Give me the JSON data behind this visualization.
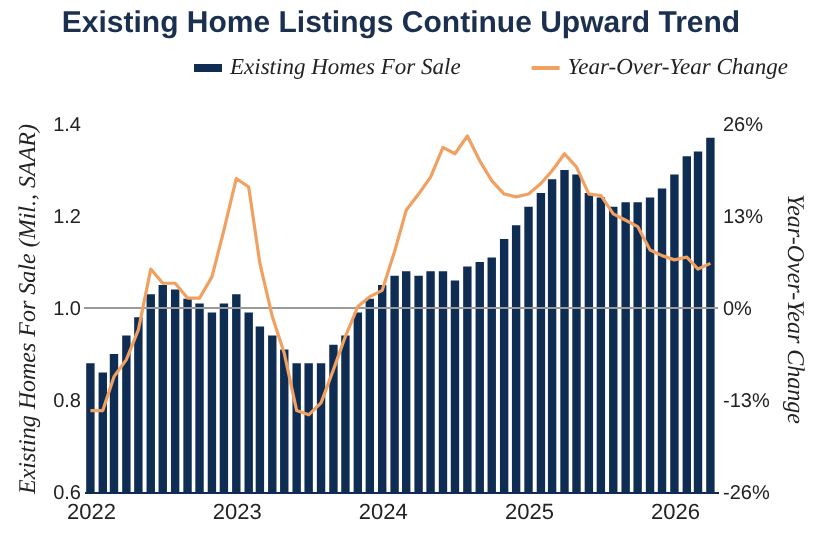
{
  "chart_data": {
    "type": "bar",
    "title": "Existing Home Listings Continue Upward Trend",
    "ylabel": "Existing Homes For Sale (Mil., SAAR)",
    "y2label": "Year-Over-Year Change",
    "x": [
      "2022-01",
      "2022-02",
      "2022-03",
      "2022-04",
      "2022-05",
      "2022-06",
      "2022-07",
      "2022-08",
      "2022-09",
      "2022-10",
      "2022-11",
      "2022-12",
      "2023-01",
      "2023-02",
      "2023-03",
      "2023-04",
      "2023-05",
      "2023-06",
      "2023-07",
      "2023-08",
      "2023-09",
      "2023-10",
      "2023-11",
      "2023-12",
      "2024-01",
      "2024-02",
      "2024-03",
      "2024-04",
      "2024-05",
      "2024-06",
      "2024-07",
      "2024-08",
      "2024-09",
      "2024-10",
      "2024-11",
      "2024-12",
      "2025-01",
      "2025-02",
      "2025-03",
      "2025-04",
      "2025-05",
      "2025-06",
      "2025-07",
      "2025-08",
      "2025-09",
      "2025-10",
      "2025-11",
      "2025-12",
      "2026-01",
      "2026-02",
      "2026-03",
      "2026-04"
    ],
    "series": [
      {
        "name": "Existing Homes For Sale",
        "color": "#0f2d52",
        "values": [
          0.88,
          0.86,
          0.9,
          0.94,
          0.98,
          1.03,
          1.05,
          1.04,
          1.02,
          1.01,
          0.99,
          1.01,
          1.03,
          0.99,
          0.96,
          0.94,
          0.91,
          0.88,
          0.88,
          0.88,
          0.92,
          0.94,
          0.99,
          1.02,
          1.05,
          1.07,
          1.08,
          1.07,
          1.08,
          1.08,
          1.06,
          1.09,
          1.1,
          1.11,
          1.15,
          1.18,
          1.22,
          1.25,
          1.28,
          1.3,
          1.29,
          1.25,
          1.24,
          1.22,
          1.23,
          1.23,
          1.24,
          1.26,
          1.29,
          1.33,
          1.34,
          1.37
        ]
      },
      {
        "name": "Year-Over-Year Change",
        "type": "line",
        "axis": "y2",
        "color": "#f0a060",
        "values": [
          -14.5,
          -14.5,
          -9.7,
          -7.3,
          -3.1,
          5.5,
          3.5,
          3.5,
          1.4,
          1.4,
          4.4,
          11,
          18.3,
          17.1,
          6.3,
          -1.2,
          -6.4,
          -14.5,
          -15.1,
          -13.4,
          -8.7,
          -4,
          0.2,
          1.6,
          2.5,
          8,
          13.8,
          16.1,
          18.5,
          22.7,
          21.8,
          24.3,
          20.8,
          18,
          16.1,
          15.7,
          16.1,
          17.6,
          19.4,
          21.8,
          19.9,
          16.1,
          15.9,
          13.3,
          12.4,
          11.5,
          8.2,
          7.4,
          6.8,
          7.2,
          5.5,
          6.3
        ]
      }
    ],
    "xlim": [
      "2021-12-16",
      "2026-04-20"
    ],
    "xticks": [
      "2022",
      "2023",
      "2024",
      "2025",
      "2026"
    ],
    "ylim": [
      0.6,
      1.4
    ],
    "yticks": [
      {
        "value": 0.6,
        "label": "0.6"
      },
      {
        "value": 0.8,
        "label": "0.8"
      },
      {
        "value": 1.0,
        "label": "1.0"
      },
      {
        "value": 1.2,
        "label": "1.2"
      },
      {
        "value": 1.4,
        "label": "1.4"
      }
    ],
    "y2lim": [
      -26,
      26
    ],
    "y2ticks": [
      {
        "value": -26,
        "label": "-26%"
      },
      {
        "value": -13,
        "label": "-13%"
      },
      {
        "value": 0,
        "label": "0%"
      },
      {
        "value": 13,
        "label": "13%"
      },
      {
        "value": 26,
        "label": "26%"
      }
    ],
    "ref_lines": [
      {
        "axis": "y",
        "value": 1.0,
        "color": "#9a9a9a"
      }
    ],
    "legend": "top",
    "grid": false,
    "marker": "none",
    "line_style": "solid"
  }
}
